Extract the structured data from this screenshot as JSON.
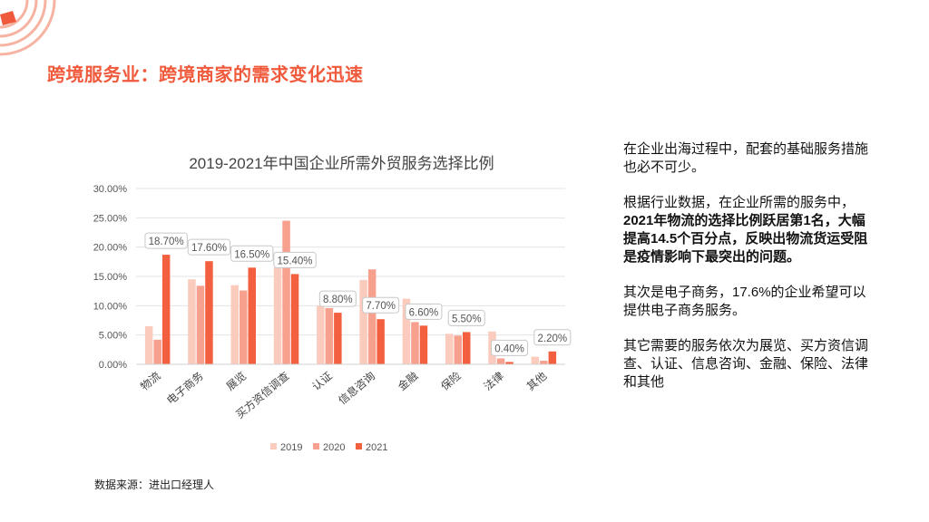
{
  "page": {
    "title": "跨境服务业：跨境商家的需求变化迅速",
    "source": "数据来源：进出口经理人"
  },
  "side": {
    "p1": "在企业出海过程中，配套的基础服务措施也必不可少。",
    "p2_lead": "根据行业数据，在企业所需的服务中，",
    "p2_bold": "2021年物流的选择比例跃居第1名，大幅提高14.5个百分点，反映出物流货运受阻是疫情影响下最突出的问题。",
    "p3": "其次是电子商务，17.6%的企业希望可以提供电子商务服务。",
    "p4": "其它需要的服务依次为展览、买方资信调查、认证、信息咨询、金融、保险、法律和其他"
  },
  "colors": {
    "accent": "#f05a3c",
    "s2019": "#fbcbbd",
    "s2020": "#f7a08d",
    "s2021": "#f2603f"
  },
  "chart_data": {
    "type": "bar",
    "title": "2019-2021年中国企业所需外贸服务选择比例",
    "categories": [
      "物流",
      "电子商务",
      "展览",
      "买方资信调查",
      "认证",
      "信息咨询",
      "金融",
      "保险",
      "法律",
      "其他"
    ],
    "series": [
      {
        "name": "2019",
        "values": [
          6.5,
          14.5,
          13.5,
          16.5,
          10.0,
          14.4,
          11.2,
          5.2,
          5.6,
          1.3
        ]
      },
      {
        "name": "2020",
        "values": [
          4.2,
          13.4,
          12.6,
          24.5,
          9.6,
          16.2,
          7.2,
          4.9,
          1.0,
          0.6
        ]
      },
      {
        "name": "2021",
        "values": [
          18.7,
          17.6,
          16.5,
          15.4,
          8.8,
          7.7,
          6.6,
          5.5,
          0.4,
          2.2
        ]
      }
    ],
    "data_labels": [
      "18.70%",
      "17.60%",
      "16.50%",
      "15.40%",
      "8.80%",
      "7.70%",
      "6.60%",
      "5.50%",
      "0.40%",
      "2.20%"
    ],
    "y_ticks": [
      "0.00%",
      "5.00%",
      "10.00%",
      "15.00%",
      "20.00%",
      "25.00%",
      "30.00%"
    ],
    "ylim": [
      0,
      30
    ],
    "legend": [
      "2019",
      "2020",
      "2021"
    ],
    "legend_position": "bottom"
  }
}
